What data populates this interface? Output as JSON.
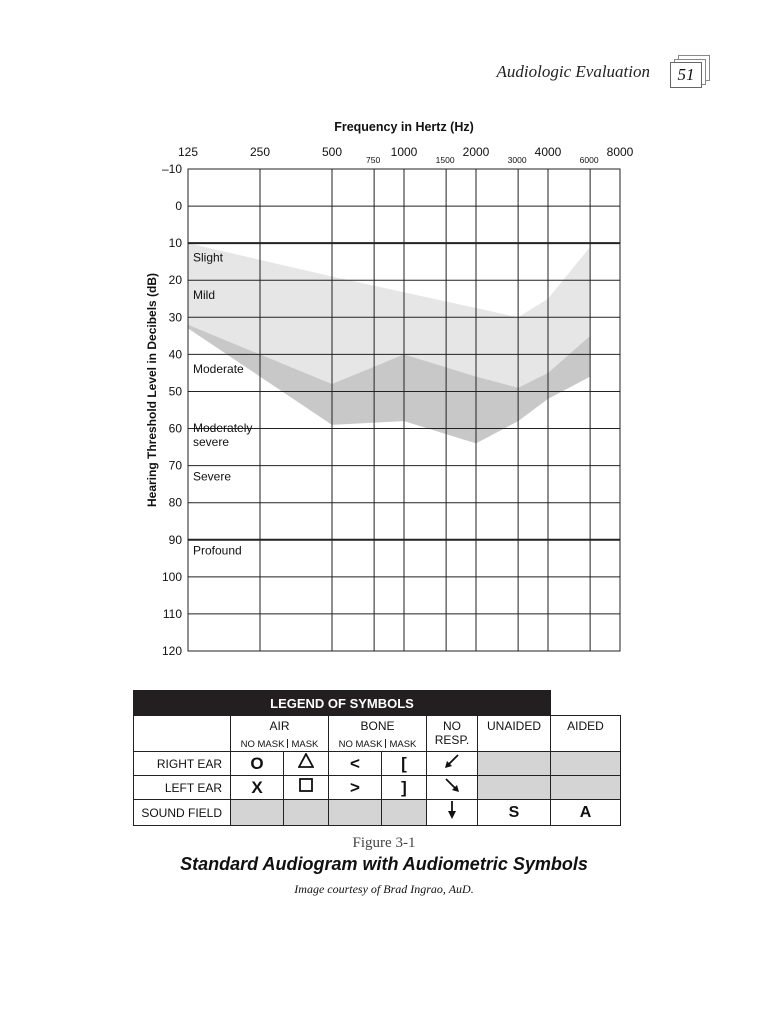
{
  "header": {
    "running_title": "Audiologic Evaluation",
    "page_number": "51"
  },
  "chart_data": {
    "type": "line",
    "title": "Frequency in Hertz (Hz)",
    "xlabel": "Frequency in Hertz (Hz)",
    "ylabel": "Hearing Threshold Level in Decibels (dB)",
    "x_major_ticks": [
      "125",
      "250",
      "500",
      "1000",
      "2000",
      "4000",
      "8000"
    ],
    "x_minor_ticks": [
      "750",
      "1500",
      "3000",
      "6000"
    ],
    "y_ticks": [
      "–10",
      "0",
      "10",
      "20",
      "30",
      "40",
      "50",
      "60",
      "70",
      "80",
      "90",
      "100",
      "110",
      "120"
    ],
    "ylim": [
      -10,
      120
    ],
    "y_inverted": true,
    "grid": true,
    "emphasis_lines_db": [
      10,
      90
    ],
    "severity_labels": [
      "Slight",
      "Mild",
      "Moderate",
      "Moderately\nsevere",
      "Severe",
      "Profound"
    ],
    "series": [
      {
        "x": [
          125,
          500,
          3000,
          4000,
          6000
        ],
        "upper_db": [
          10,
          19,
          30,
          25,
          11
        ],
        "lower_db": [
          32,
          48,
          49,
          45,
          35
        ]
      },
      {
        "x": [
          125,
          500,
          1000,
          2000,
          3000,
          4000,
          6000
        ],
        "upper_db": [
          32,
          48,
          40,
          46,
          49,
          45,
          35
        ],
        "lower_db": [
          33,
          59,
          58,
          64,
          58,
          52,
          46
        ]
      }
    ]
  },
  "legend": {
    "title": "LEGEND OF SYMBOLS",
    "headers": {
      "air": "AIR",
      "bone": "BONE",
      "no_resp": "NO\nRESP.",
      "unaided": "UNAIDED",
      "aided": "AIDED"
    },
    "subheaders": {
      "no_mask": "NO MASK",
      "mask": "MASK"
    },
    "rows": {
      "right": "RIGHT EAR",
      "left": "LEFT EAR",
      "sound": "SOUND FIELD"
    },
    "symbols": {
      "right_air_no_mask": "O",
      "left_air_no_mask": "X",
      "right_bone_no_mask": "<",
      "left_bone_no_mask": ">",
      "right_bone_mask": "[",
      "left_bone_mask": "]",
      "sound_unaided": "S",
      "sound_aided": "A"
    },
    "icons": {
      "right_air_mask": "triangle-icon",
      "left_air_mask": "square-icon",
      "right_no_resp": "arrow-down-left-icon",
      "left_no_resp": "arrow-down-right-icon",
      "sound_no_resp": "arrow-down-icon"
    }
  },
  "figure": {
    "number": "Figure 3-1",
    "title": "Standard Audiogram with Audiometric Symbols",
    "credit": "Image courtesy of Brad Ingrao, AuD."
  },
  "colors": {
    "light_band": "#e6e6e6",
    "dark_band": "#c8c8c8",
    "legend_header_bg": "#231f20",
    "shade": "#d4d4d4"
  }
}
